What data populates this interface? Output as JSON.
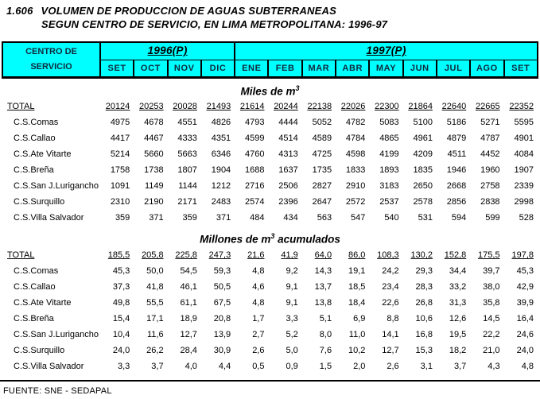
{
  "title": {
    "number": "1.606",
    "line1": "VOLUMEN DE PRODUCCION DE AGUAS SUBTERRANEAS",
    "line2": "SEGUN CENTRO DE SERVICIO, EN LIMA METROPOLITANA: 1996-97"
  },
  "table": {
    "corner": {
      "line1": "CENTRO DE",
      "line2": "SERVICIO"
    },
    "year_groups": [
      {
        "label": "1996(P)",
        "span": 4
      },
      {
        "label": "1997(P)",
        "span": 9
      }
    ],
    "months": [
      "SET",
      "OCT",
      "NOV",
      "DIC",
      "ENE",
      "FEB",
      "MAR",
      "ABR",
      "MAY",
      "JUN",
      "JUL",
      "AGO",
      "SET"
    ]
  },
  "sections": [
    {
      "heading": {
        "text_before_sup": "Miles de m",
        "sup": "3",
        "text_after_sup": ""
      },
      "rows": [
        {
          "label": "TOTAL",
          "underline": true,
          "values": [
            "20124",
            "20253",
            "20028",
            "21493",
            "21614",
            "20244",
            "22138",
            "22026",
            "22300",
            "21864",
            "22640",
            "22665",
            "22352"
          ]
        },
        {
          "label": "C.S.Comas",
          "underline": false,
          "values": [
            "4975",
            "4678",
            "4551",
            "4826",
            "4793",
            "4444",
            "5052",
            "4782",
            "5083",
            "5100",
            "5186",
            "5271",
            "5595"
          ]
        },
        {
          "label": "C.S.Callao",
          "underline": false,
          "values": [
            "4417",
            "4467",
            "4333",
            "4351",
            "4599",
            "4514",
            "4589",
            "4784",
            "4865",
            "4961",
            "4879",
            "4787",
            "4901"
          ]
        },
        {
          "label": "C.S.Ate Vitarte",
          "underline": false,
          "values": [
            "5214",
            "5660",
            "5663",
            "6346",
            "4760",
            "4313",
            "4725",
            "4598",
            "4199",
            "4209",
            "4511",
            "4452",
            "4084"
          ]
        },
        {
          "label": "C.S.Breña",
          "underline": false,
          "values": [
            "1758",
            "1738",
            "1807",
            "1904",
            "1688",
            "1637",
            "1735",
            "1833",
            "1893",
            "1835",
            "1946",
            "1960",
            "1907"
          ]
        },
        {
          "label": "C.S.San J.Lurigancho",
          "underline": false,
          "values": [
            "1091",
            "1149",
            "1144",
            "1212",
            "2716",
            "2506",
            "2827",
            "2910",
            "3183",
            "2650",
            "2668",
            "2758",
            "2339"
          ]
        },
        {
          "label": "C.S.Surquillo",
          "underline": false,
          "values": [
            "2310",
            "2190",
            "2171",
            "2483",
            "2574",
            "2396",
            "2647",
            "2572",
            "2537",
            "2578",
            "2856",
            "2838",
            "2998"
          ]
        },
        {
          "label": "C.S.Villa Salvador",
          "underline": false,
          "values": [
            "359",
            "371",
            "359",
            "371",
            "484",
            "434",
            "563",
            "547",
            "540",
            "531",
            "594",
            "599",
            "528"
          ]
        }
      ]
    },
    {
      "heading": {
        "text_before_sup": "Millones  de m",
        "sup": "3",
        "text_after_sup": " acumulados"
      },
      "rows": [
        {
          "label": "TOTAL",
          "underline": true,
          "values": [
            "185,5",
            "205,8",
            "225,8",
            "247,3",
            "21,6",
            "41,9",
            "64,0",
            "86,0",
            "108,3",
            "130,2",
            "152,8",
            "175,5",
            "197,8"
          ]
        },
        {
          "label": "C.S.Comas",
          "underline": false,
          "values": [
            "45,3",
            "50,0",
            "54,5",
            "59,3",
            "4,8",
            "9,2",
            "14,3",
            "19,1",
            "24,2",
            "29,3",
            "34,4",
            "39,7",
            "45,3"
          ]
        },
        {
          "label": "C.S.Callao",
          "underline": false,
          "values": [
            "37,3",
            "41,8",
            "46,1",
            "50,5",
            "4,6",
            "9,1",
            "13,7",
            "18,5",
            "23,4",
            "28,3",
            "33,2",
            "38,0",
            "42,9"
          ]
        },
        {
          "label": "C.S.Ate Vitarte",
          "underline": false,
          "values": [
            "49,8",
            "55,5",
            "61,1",
            "67,5",
            "4,8",
            "9,1",
            "13,8",
            "18,4",
            "22,6",
            "26,8",
            "31,3",
            "35,8",
            "39,9"
          ]
        },
        {
          "label": "C.S.Breña",
          "underline": false,
          "values": [
            "15,4",
            "17,1",
            "18,9",
            "20,8",
            "1,7",
            "3,3",
            "5,1",
            "6,9",
            "8,8",
            "10,6",
            "12,6",
            "14,5",
            "16,4"
          ]
        },
        {
          "label": "C.S.San J.Lurigancho",
          "underline": false,
          "values": [
            "10,4",
            "11,6",
            "12,7",
            "13,9",
            "2,7",
            "5,2",
            "8,0",
            "11,0",
            "14,1",
            "16,8",
            "19,5",
            "22,2",
            "24,6"
          ]
        },
        {
          "label": "C.S.Surquillo",
          "underline": false,
          "values": [
            "24,0",
            "26,2",
            "28,4",
            "30,9",
            "2,6",
            "5,0",
            "7,6",
            "10,2",
            "12,7",
            "15,3",
            "18,2",
            "21,0",
            "24,0"
          ]
        },
        {
          "label": "C.S.Villa Salvador",
          "underline": false,
          "values": [
            "3,3",
            "3,7",
            "4,0",
            "4,4",
            "0,5",
            "0,9",
            "1,5",
            "2,0",
            "2,6",
            "3,1",
            "3,7",
            "4,3",
            "4,8"
          ]
        }
      ]
    }
  ],
  "footer": {
    "source": "FUENTE: SNE - SEDAPAL"
  },
  "colors": {
    "header_bg": "#00ffff",
    "header_text": "#10283c",
    "border": "#000000"
  }
}
